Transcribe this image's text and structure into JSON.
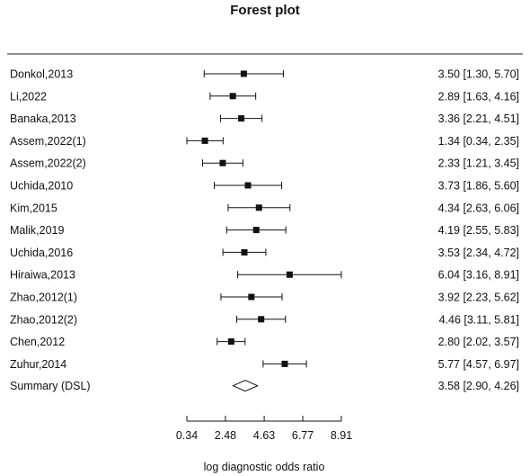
{
  "chart_data": {
    "type": "forest",
    "title": "Forest plot",
    "xlabel": "log diagnostic odds ratio",
    "xlim": [
      0.34,
      8.91
    ],
    "xticks": [
      "0.34",
      "2.48",
      "4.63",
      "6.77",
      "8.91"
    ],
    "tick_values": [
      0.34,
      2.48,
      4.63,
      6.77,
      8.91
    ],
    "studies": [
      {
        "name": "Donkol,2013",
        "estimate": 3.5,
        "lower": 1.3,
        "upper": 5.7,
        "label": "3.50 [1.30, 5.70]"
      },
      {
        "name": "Li,2022",
        "estimate": 2.89,
        "lower": 1.63,
        "upper": 4.16,
        "label": "2.89 [1.63, 4.16]"
      },
      {
        "name": "Banaka,2013",
        "estimate": 3.36,
        "lower": 2.21,
        "upper": 4.51,
        "label": "3.36 [2.21, 4.51]"
      },
      {
        "name": "Assem,2022(1)",
        "estimate": 1.34,
        "lower": 0.34,
        "upper": 2.35,
        "label": "1.34 [0.34, 2.35]"
      },
      {
        "name": "Assem,2022(2)",
        "estimate": 2.33,
        "lower": 1.21,
        "upper": 3.45,
        "label": "2.33 [1.21, 3.45]"
      },
      {
        "name": "Uchida,2010",
        "estimate": 3.73,
        "lower": 1.86,
        "upper": 5.6,
        "label": "3.73 [1.86, 5.60]"
      },
      {
        "name": "Kim,2015",
        "estimate": 4.34,
        "lower": 2.63,
        "upper": 6.06,
        "label": "4.34 [2.63, 6.06]"
      },
      {
        "name": "Malik,2019",
        "estimate": 4.19,
        "lower": 2.55,
        "upper": 5.83,
        "label": "4.19 [2.55, 5.83]"
      },
      {
        "name": "Uchida,2016",
        "estimate": 3.53,
        "lower": 2.34,
        "upper": 4.72,
        "label": "3.53 [2.34, 4.72]"
      },
      {
        "name": "Hiraiwa,2013",
        "estimate": 6.04,
        "lower": 3.16,
        "upper": 8.91,
        "label": "6.04 [3.16, 8.91]"
      },
      {
        "name": "Zhao,2012(1)",
        "estimate": 3.92,
        "lower": 2.23,
        "upper": 5.62,
        "label": "3.92 [2.23, 5.62]"
      },
      {
        "name": "Zhao,2012(2)",
        "estimate": 4.46,
        "lower": 3.11,
        "upper": 5.81,
        "label": "4.46 [3.11, 5.81]"
      },
      {
        "name": "Chen,2012",
        "estimate": 2.8,
        "lower": 2.02,
        "upper": 3.57,
        "label": "2.80 [2.02, 3.57]"
      },
      {
        "name": "Zuhur,2014",
        "estimate": 5.77,
        "lower": 4.57,
        "upper": 6.97,
        "label": "5.77 [4.57, 6.97]"
      }
    ],
    "summary": {
      "name": "Summary (DSL)",
      "estimate": 3.58,
      "lower": 2.9,
      "upper": 4.26,
      "label": "3.58 [2.90, 4.26]"
    },
    "colors": {
      "ink": "#111111",
      "background": "#ffffff"
    }
  }
}
